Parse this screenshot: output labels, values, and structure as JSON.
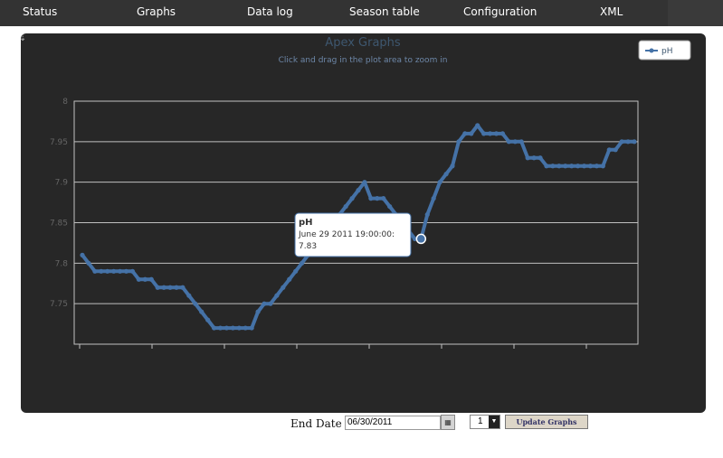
{
  "nav": {
    "items": [
      {
        "label": "Status"
      },
      {
        "label": "Graphs"
      },
      {
        "label": "Data log"
      },
      {
        "label": "Season table"
      },
      {
        "label": "Configuration"
      },
      {
        "label": "XML"
      }
    ]
  },
  "chart_data": {
    "type": "line",
    "title": "Apex Graphs",
    "subtitle": "Click and drag in the plot area to zoom in",
    "ylim": [
      7.7,
      8.0
    ],
    "y_ticks": [
      "8",
      "7.95",
      "7.9",
      "7.85",
      "7.8",
      "7.75"
    ],
    "grid": true,
    "legend_position": "top-right",
    "series": [
      {
        "name": "pH",
        "color": "#4572a7",
        "values": [
          7.81,
          7.8,
          7.79,
          7.79,
          7.79,
          7.79,
          7.79,
          7.79,
          7.79,
          7.78,
          7.78,
          7.78,
          7.77,
          7.77,
          7.77,
          7.77,
          7.77,
          7.76,
          7.75,
          7.74,
          7.73,
          7.72,
          7.72,
          7.72,
          7.72,
          7.72,
          7.72,
          7.72,
          7.74,
          7.75,
          7.75,
          7.76,
          7.77,
          7.78,
          7.79,
          7.8,
          7.81,
          7.82,
          7.83,
          7.84,
          7.85,
          7.86,
          7.87,
          7.88,
          7.89,
          7.9,
          7.88,
          7.88,
          7.88,
          7.87,
          7.86,
          7.85,
          7.84,
          7.83,
          7.83,
          7.86,
          7.88,
          7.9,
          7.91,
          7.92,
          7.95,
          7.96,
          7.96,
          7.97,
          7.96,
          7.96,
          7.96,
          7.96,
          7.95,
          7.95,
          7.95,
          7.93,
          7.93,
          7.93,
          7.92,
          7.92,
          7.92,
          7.92,
          7.92,
          7.92,
          7.92,
          7.92,
          7.92,
          7.92,
          7.94,
          7.94,
          7.95,
          7.95,
          7.95
        ]
      }
    ],
    "highlight_index": 54,
    "tooltip": {
      "series": "pH",
      "date": "June 29 2011 19:00:00:",
      "value": "7.83"
    }
  },
  "controls": {
    "end_date_label": "End Date",
    "end_date_value": "06/30/2011",
    "days_value": "1",
    "update_label": "Update Graphs"
  }
}
